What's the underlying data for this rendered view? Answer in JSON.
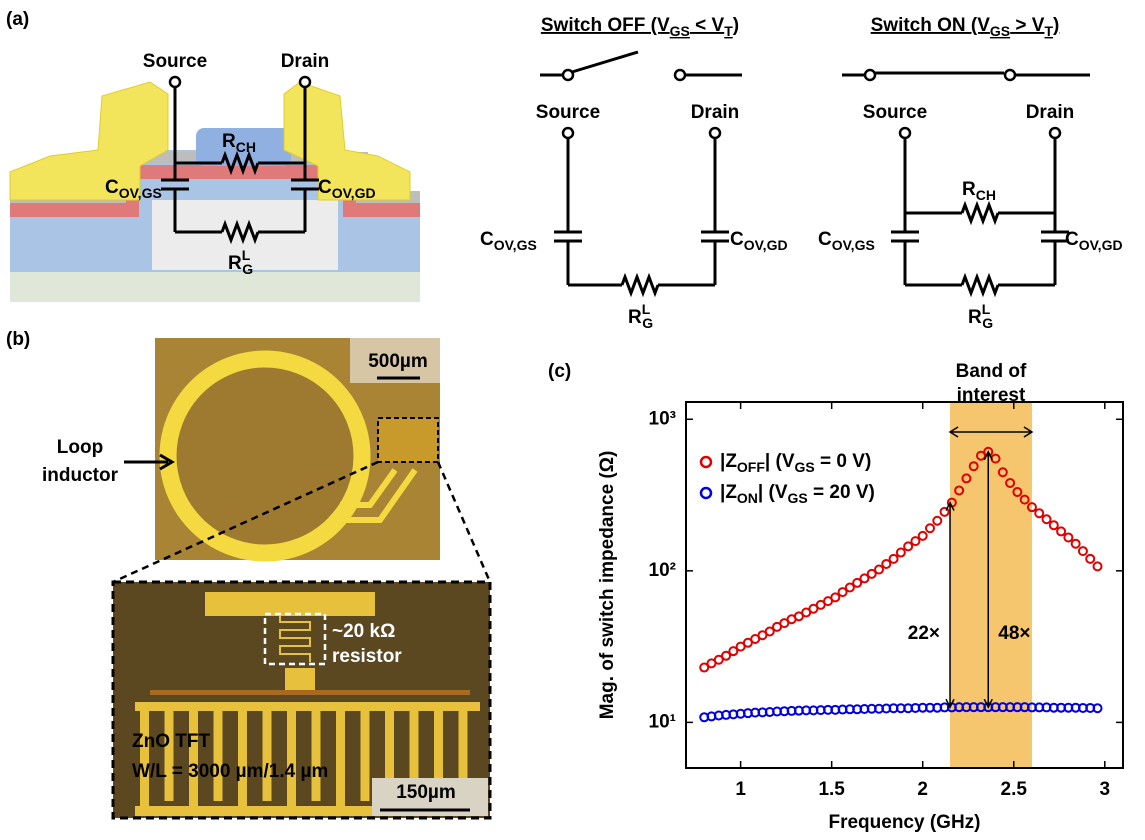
{
  "panel_labels": [
    "(a)",
    "(b)",
    "(c)"
  ],
  "device": {
    "source": "Source",
    "drain": "Drain",
    "r_ch": [
      "R",
      {
        "sub": "CH"
      }
    ],
    "c_gs": [
      "C",
      {
        "sub": "OV,GS"
      }
    ],
    "c_gd": [
      "C",
      {
        "sub": "OV,GD"
      }
    ],
    "r_g": [
      "R",
      {
        "sup": "L"
      },
      {
        "sub": "G"
      }
    ]
  },
  "switch_off": {
    "title": [
      "Switch OFF (V",
      {
        "sub": "GS"
      },
      " < V",
      {
        "sub": "T"
      },
      ")"
    ],
    "source": "Source",
    "drain": "Drain",
    "c_gs": [
      "C",
      {
        "sub": "OV,GS"
      }
    ],
    "c_gd": [
      "C",
      {
        "sub": "OV,GD"
      }
    ],
    "r_g": [
      "R",
      {
        "sup": "L"
      },
      {
        "sub": "G"
      }
    ]
  },
  "switch_on": {
    "title": [
      "Switch ON (V",
      {
        "sub": "GS"
      },
      " > V",
      {
        "sub": "T"
      },
      ")"
    ],
    "source": "Source",
    "drain": "Drain",
    "r_ch": [
      "R",
      {
        "sub": "CH"
      }
    ],
    "c_gs": [
      "C",
      {
        "sub": "OV,GS"
      }
    ],
    "c_gd": [
      "C",
      {
        "sub": "OV,GD"
      }
    ],
    "r_g": [
      "R",
      {
        "sup": "L"
      },
      {
        "sub": "G"
      }
    ]
  },
  "micrograph": {
    "scale_top": "500µm",
    "inductor_label": [
      "Loop",
      "inductor"
    ],
    "resistor_label": [
      "~20 kΩ",
      "resistor"
    ],
    "tft_label": [
      "ZnO TFT",
      "W/L = 3000 µm/1.4 µm"
    ],
    "scale_bottom": "150µm"
  },
  "chart_data": {
    "type": "scatter",
    "x_label": "Frequency (GHz)",
    "y_label": "Mag. of switch impedance (Ω)",
    "x": [
      0.8,
      0.84,
      0.88,
      0.92,
      0.96,
      1.0,
      1.04,
      1.08,
      1.12,
      1.16,
      1.2,
      1.24,
      1.28,
      1.32,
      1.36,
      1.4,
      1.44,
      1.48,
      1.52,
      1.56,
      1.6,
      1.64,
      1.68,
      1.72,
      1.76,
      1.8,
      1.84,
      1.88,
      1.92,
      1.96,
      2.0,
      2.04,
      2.08,
      2.12,
      2.16,
      2.2,
      2.24,
      2.28,
      2.32,
      2.36,
      2.4,
      2.44,
      2.48,
      2.52,
      2.56,
      2.6,
      2.64,
      2.68,
      2.72,
      2.76,
      2.8,
      2.84,
      2.88,
      2.92,
      2.96
    ],
    "series": [
      {
        "name": [
          "|Z",
          {
            "sub": "OFF"
          },
          "| (V",
          {
            "sub": "GS"
          },
          " = 0 V)"
        ],
        "color": "#e00000",
        "values": [
          23,
          24.5,
          25.9,
          27.5,
          29.5,
          31.6,
          33.5,
          35.5,
          37.6,
          39.8,
          42.7,
          45.2,
          47.9,
          50.1,
          53.1,
          56.2,
          59.6,
          63.1,
          66.8,
          72.4,
          77.6,
          83.2,
          89.1,
          95.5,
          102,
          111,
          120,
          132,
          145,
          157,
          170,
          191,
          214,
          245,
          282,
          339,
          407,
          490,
          575,
          610,
          550,
          447,
          380,
          331,
          295,
          263,
          240,
          219,
          200,
          182,
          166,
          151,
          135,
          120,
          107
        ]
      },
      {
        "name": [
          "|Z",
          {
            "sub": "ON"
          },
          "| (V",
          {
            "sub": "GS"
          },
          " = 20 V)"
        ],
        "color": "#0000e0",
        "values": [
          10.8,
          10.95,
          11.1,
          11.2,
          11.3,
          11.4,
          11.5,
          11.6,
          11.65,
          11.7,
          11.8,
          11.85,
          11.9,
          11.95,
          12.0,
          12.0,
          12.05,
          12.1,
          12.1,
          12.15,
          12.2,
          12.2,
          12.25,
          12.3,
          12.3,
          12.35,
          12.4,
          12.4,
          12.4,
          12.45,
          12.5,
          12.5,
          12.5,
          12.55,
          12.55,
          12.6,
          12.6,
          12.6,
          12.6,
          12.6,
          12.6,
          12.6,
          12.6,
          12.6,
          12.6,
          12.55,
          12.55,
          12.55,
          12.5,
          12.5,
          12.5,
          12.5,
          12.45,
          12.45,
          12.4
        ]
      }
    ],
    "xlim": [
      0.7,
      3.1
    ],
    "xticks": [
      1,
      1.5,
      2,
      2.5,
      3
    ],
    "ylim": [
      5,
      1300
    ],
    "log_y": true,
    "yticks": [
      {
        "value": 10,
        "label": "10¹"
      },
      {
        "value": 100,
        "label": "10²"
      },
      {
        "value": 1000,
        "label": "10³"
      }
    ],
    "legend": "upper left",
    "band": {
      "x": [
        2.15,
        2.6
      ],
      "label": [
        "Band of",
        "interest"
      ],
      "color": "#f5c66e"
    },
    "annotations": [
      {
        "text": "22×",
        "x": 2.15,
        "y": [
          12.6,
          282
        ]
      },
      {
        "text": "48×",
        "x": 2.36,
        "y": [
          12.6,
          610
        ]
      }
    ]
  }
}
